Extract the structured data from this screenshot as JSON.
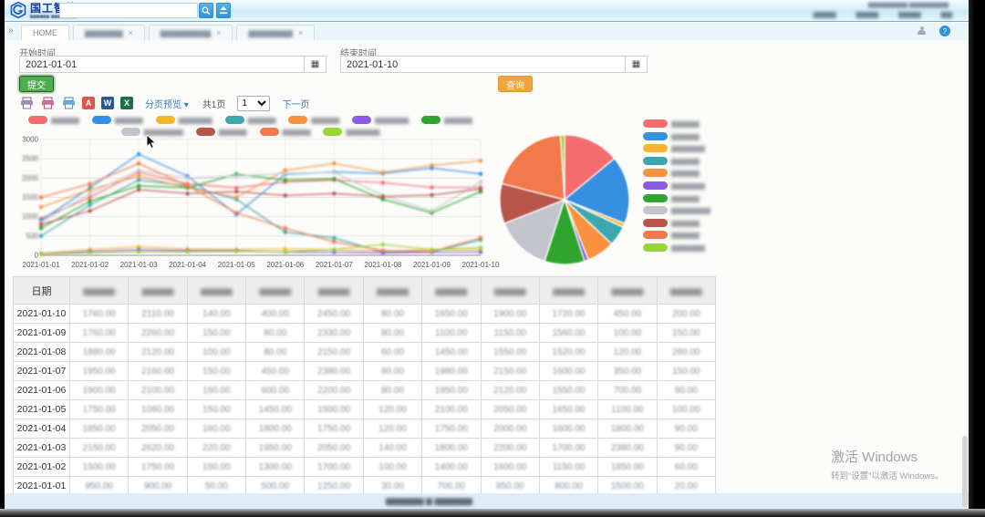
{
  "header": {
    "logo_title": "国工智能",
    "logo_subtitle": "▆▆▆▆▆▆ ▆▆▆▆▆▆▆▆",
    "search_placeholder": "",
    "top_right_text": "▆▆▆▆▆▆▆▆ ▆▆▆▆▆▆▆▆",
    "menu_items": [
      "▆▆▆▆",
      "▆▆▆▆",
      "▆▆▆▆",
      "▆▆"
    ],
    "search_glyph": "⌕",
    "upload_glyph": "▲",
    "help_glyph": "?"
  },
  "tabs": {
    "scroll_arrow": "»",
    "active_label": "HOME",
    "other_tabs": [
      "▆▆▆▆▆▆",
      "▆▆▆▆▆▆▆▆",
      "▆▆▆▆▆▆▆"
    ],
    "close_glyph": "×"
  },
  "filters": {
    "start_label": "开始时间",
    "start_value": "2021-01-01",
    "end_label": "结束时间",
    "end_value": "2021-01-10",
    "calendar_glyph": "▦",
    "submit_label": "提交",
    "query_label": "查询"
  },
  "toolbar": {
    "export_icons": [
      {
        "name": "print-preview-icon",
        "color": "#8f7bb0",
        "type": "printer"
      },
      {
        "name": "printer-pink-icon",
        "color": "#c9578a",
        "type": "printer"
      },
      {
        "name": "printer-blue-icon",
        "color": "#4d9fd6",
        "type": "printer"
      },
      {
        "name": "pdf-export-icon",
        "color": "#e2574c",
        "type": "square",
        "letter": "A"
      },
      {
        "name": "word-export-icon",
        "color": "#2b579a",
        "type": "square",
        "letter": "W"
      },
      {
        "name": "excel-export-icon",
        "color": "#1e7145",
        "type": "square",
        "letter": "X"
      }
    ],
    "paging_preview_label": "分页预览",
    "caret": "▾",
    "total_pages": "共1页",
    "page_value": "1",
    "next_label": "下一页"
  },
  "chart_data": [
    {
      "type": "line",
      "title": "",
      "xlabel": "",
      "ylabel": "",
      "ylim": [
        0,
        3000
      ],
      "yticks": [
        0,
        500,
        1000,
        1500,
        2000,
        2500,
        3000
      ],
      "grid": true,
      "legend_position": "top",
      "legend_rows": [
        7,
        4
      ],
      "x": [
        "2021-01-01",
        "2021-01-02",
        "2021-01-03",
        "2021-01-04",
        "2021-01-05",
        "2021-01-06",
        "2021-01-07",
        "2021-01-08",
        "2021-01-09",
        "2021-01-10"
      ],
      "series": [
        {
          "name": "▆▆▆▆▆",
          "color": "#f56c6c",
          "values": [
            950,
            1500,
            2150,
            1850,
            1750,
            1900,
            1950,
            1880,
            1760,
            1760
          ]
        },
        {
          "name": "▆▆▆▆▆",
          "color": "#3590e4",
          "values": [
            900,
            1750,
            2620,
            2050,
            1060,
            2100,
            2160,
            2120,
            2260,
            2110
          ]
        },
        {
          "name": "▆▆▆▆▆▆",
          "color": "#f5b62e",
          "values": [
            50,
            150,
            220,
            160,
            150,
            160,
            150,
            100,
            150,
            140
          ]
        },
        {
          "name": "▆▆▆▆▆",
          "color": "#3ba8b0",
          "values": [
            500,
            1300,
            1950,
            1800,
            1450,
            600,
            450,
            80,
            80,
            400
          ]
        },
        {
          "name": "▆▆▆▆▆",
          "color": "#f9923e",
          "values": [
            1250,
            1700,
            2050,
            1750,
            1500,
            2200,
            2380,
            2150,
            2330,
            2450
          ]
        },
        {
          "name": "▆▆▆▆▆▆",
          "color": "#8a5ce6",
          "values": [
            30,
            100,
            140,
            120,
            120,
            80,
            80,
            60,
            80,
            80
          ]
        },
        {
          "name": "▆▆▆▆▆",
          "color": "#2fa52f",
          "values": [
            700,
            1400,
            1800,
            1750,
            2100,
            1950,
            1980,
            1450,
            1100,
            1650
          ]
        },
        {
          "name": "▆▆▆▆▆▆▆",
          "color": "#c2c6cc",
          "values": [
            850,
            1600,
            2200,
            2000,
            2050,
            2120,
            2150,
            1550,
            1150,
            1900
          ]
        },
        {
          "name": "▆▆▆▆▆",
          "color": "#b8564c",
          "values": [
            800,
            1150,
            1700,
            1600,
            1650,
            1550,
            1600,
            1520,
            1560,
            1720
          ]
        },
        {
          "name": "▆▆▆▆▆",
          "color": "#f2794a",
          "values": [
            1500,
            1850,
            2380,
            1800,
            1100,
            700,
            350,
            120,
            100,
            450
          ]
        },
        {
          "name": "▆▆▆▆▆▆",
          "color": "#9bd437",
          "values": [
            20,
            60,
            90,
            90,
            100,
            90,
            150,
            280,
            150,
            200
          ]
        }
      ]
    },
    {
      "type": "pie",
      "title": "",
      "legend_position": "right",
      "slices": [
        {
          "name": "▆▆▆▆▆",
          "color": "#f56c6c",
          "value": 14
        },
        {
          "name": "▆▆▆▆▆",
          "color": "#3590e4",
          "value": 17
        },
        {
          "name": "▆▆▆▆▆▆",
          "color": "#f5b62e",
          "value": 1
        },
        {
          "name": "▆▆▆▆▆",
          "color": "#3ba8b0",
          "value": 5
        },
        {
          "name": "▆▆▆▆▆",
          "color": "#f9923e",
          "value": 7
        },
        {
          "name": "▆▆▆▆▆▆",
          "color": "#8a5ce6",
          "value": 1
        },
        {
          "name": "▆▆▆▆▆",
          "color": "#2fa52f",
          "value": 10
        },
        {
          "name": "▆▆▆▆▆▆▆",
          "color": "#c2c6cc",
          "value": 14
        },
        {
          "name": "▆▆▆▆▆",
          "color": "#b8564c",
          "value": 10
        },
        {
          "name": "▆▆▆▆▆",
          "color": "#f2794a",
          "value": 20
        },
        {
          "name": "▆▆▆▆▆▆",
          "color": "#9bd437",
          "value": 1
        }
      ]
    }
  ],
  "table": {
    "date_header": "日期",
    "header_placeholder": "▆▆▆▆▆",
    "dates_desc": [
      "2021-01-10",
      "2021-01-09",
      "2021-01-08",
      "2021-01-07",
      "2021-01-06",
      "2021-01-05",
      "2021-01-04",
      "2021-01-03",
      "2021-01-02",
      "2021-01-01"
    ]
  },
  "footer_text": "▆▆▆▆▆▆ ▆ ▆▆▆▆▆▆",
  "watermark": {
    "line1": "激活 Windows",
    "line2": "转到“设置”以激活 Windows。"
  }
}
